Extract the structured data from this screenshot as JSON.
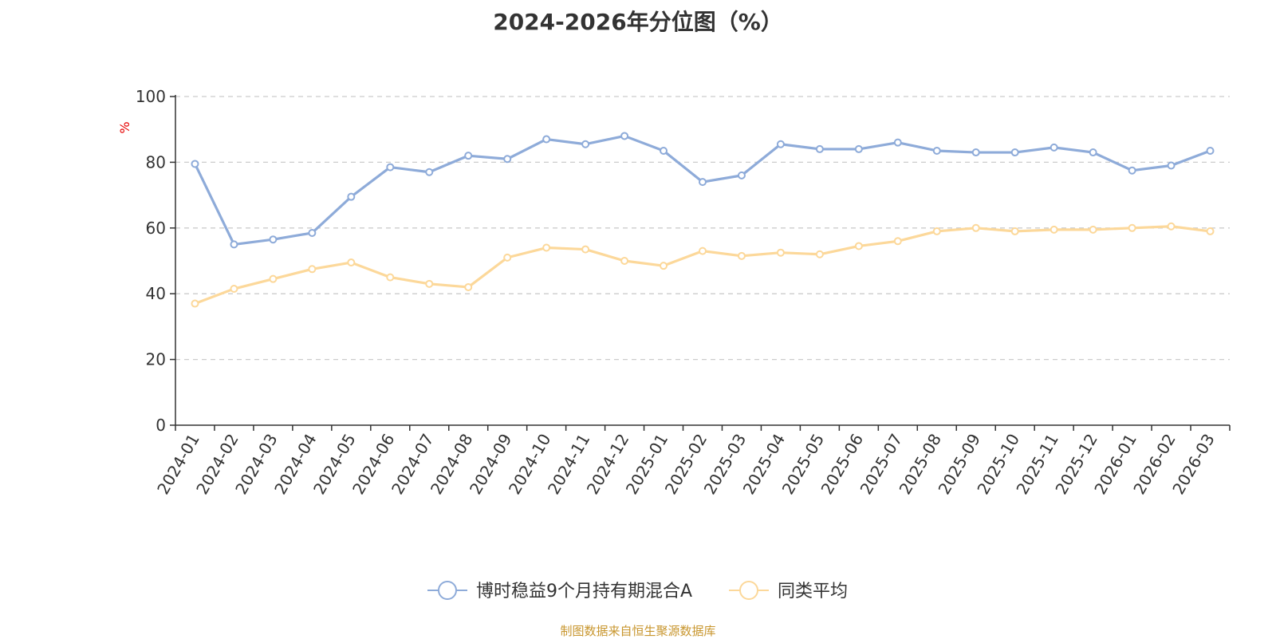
{
  "chart_data": {
    "type": "line",
    "title": "2024-2026年分位图（%）",
    "ylabel": "%",
    "xlabel": "",
    "ylim": [
      0,
      100
    ],
    "yticks": [
      0,
      20,
      40,
      60,
      80,
      100
    ],
    "grid": true,
    "legend_position": "bottom-center",
    "categories": [
      "2024-01",
      "2024-02",
      "2024-03",
      "2024-04",
      "2024-05",
      "2024-06",
      "2024-07",
      "2024-08",
      "2024-09",
      "2024-10",
      "2024-11",
      "2024-12",
      "2025-01",
      "2025-02",
      "2025-03",
      "2025-04",
      "2025-05",
      "2025-06",
      "2025-07",
      "2025-08",
      "2025-09",
      "2025-10",
      "2025-11",
      "2025-12",
      "2026-01",
      "2026-02",
      "2026-03"
    ],
    "series": [
      {
        "name": "博时稳益9个月持有期混合A",
        "color": "#8eabd9",
        "values": [
          79.5,
          55.0,
          56.5,
          58.5,
          69.5,
          78.5,
          77.0,
          82.0,
          81.0,
          87.0,
          85.5,
          88.0,
          83.5,
          74.0,
          76.0,
          85.5,
          84.0,
          84.0,
          86.0,
          83.5,
          83.0,
          83.0,
          84.5,
          83.0,
          77.5,
          79.0,
          83.5
        ]
      },
      {
        "name": "同类平均",
        "color": "#fcd89a",
        "values": [
          37.0,
          41.5,
          44.5,
          47.5,
          49.5,
          45.0,
          43.0,
          42.0,
          51.0,
          54.0,
          53.5,
          50.0,
          48.5,
          53.0,
          51.5,
          52.5,
          52.0,
          54.5,
          56.0,
          59.0,
          60.0,
          59.0,
          59.5,
          59.5,
          60.0,
          60.5,
          59.0
        ]
      }
    ]
  },
  "footer": {
    "source": "制图数据来自恒生聚源数据库"
  }
}
